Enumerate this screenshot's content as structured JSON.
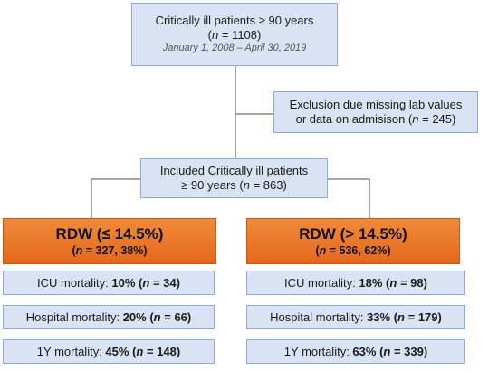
{
  "top": {
    "line1": "Critically ill patients ≥ 90 years",
    "n_open": "(",
    "n_var": "n",
    "n_rest": " = 1108)",
    "dates": "January 1, 2008 – April 30, 2019"
  },
  "exclusion": {
    "line1": "Exclusion due missing lab values",
    "line2_pre": "or data on admisison (",
    "n_var": "n",
    "line2_post": " = 245)"
  },
  "included": {
    "line1": "Included Critically ill patients",
    "line2_pre": "≥ 90 years (",
    "n_var": "n",
    "line2_post": " = 863)"
  },
  "groups": [
    {
      "title": "RDW (≤ 14.5%)",
      "n_open": "(",
      "n_var": "n",
      "n_rest": " = 327, 38%)",
      "outcomes": [
        {
          "label": "ICU mortality: ",
          "pct": "10%",
          "n_open": " (",
          "n_var": "n",
          "n_rest": " = 34)"
        },
        {
          "label": "Hospital mortality: ",
          "pct": "20%",
          "n_open": " (",
          "n_var": "n",
          "n_rest": " = 66)"
        },
        {
          "label": "1Y mortality: ",
          "pct": "45%",
          "n_open": " (",
          "n_var": "n",
          "n_rest": " = 148)"
        }
      ]
    },
    {
      "title": "RDW (> 14.5%)",
      "n_open": "(",
      "n_var": "n",
      "n_rest": " = 536, 62%)",
      "outcomes": [
        {
          "label": "ICU mortality: ",
          "pct": "18%",
          "n_open": " (",
          "n_var": "n",
          "n_rest": " = 98)"
        },
        {
          "label": "Hospital mortality: ",
          "pct": "33%",
          "n_open": " (",
          "n_var": "n",
          "n_rest": " = 179)"
        },
        {
          "label": "1Y mortality: ",
          "pct": "63%",
          "n_open": " (",
          "n_var": "n",
          "n_rest": " = 339)"
        }
      ]
    }
  ],
  "colors": {
    "box_fill": "#dae3f3",
    "box_border": "#8eaadb",
    "group_fill": "#ed7d31",
    "connector": "#a6a6a6"
  }
}
